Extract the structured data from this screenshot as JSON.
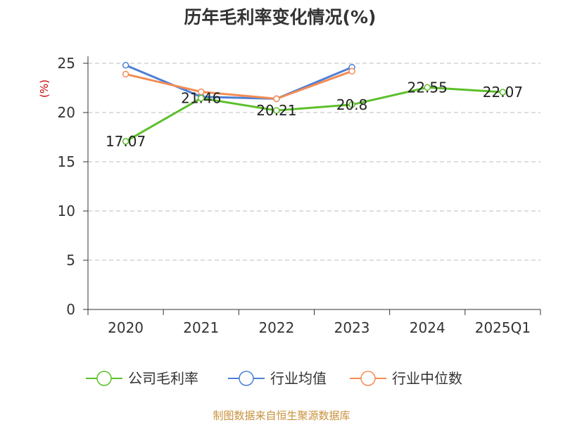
{
  "chart_data": {
    "type": "line",
    "title": "历年毛利率变化情况(%)",
    "ylabel": "(%)",
    "categories": [
      "2020",
      "2021",
      "2022",
      "2023",
      "2024",
      "2025Q1"
    ],
    "ylim": [
      0,
      25
    ],
    "yticks": [
      0,
      5,
      10,
      15,
      20,
      25
    ],
    "grid": true,
    "legend_position": "bottom",
    "series": [
      {
        "name": "公司毛利率",
        "color": "#5cbf2a",
        "values": [
          17.07,
          21.46,
          20.21,
          20.8,
          22.55,
          22.07
        ],
        "show_labels": true
      },
      {
        "name": "行业均值",
        "color": "#4d7fd6",
        "values": [
          24.8,
          21.6,
          21.4,
          24.6,
          null,
          null
        ],
        "show_labels": false
      },
      {
        "name": "行业中位数",
        "color": "#f28c54",
        "values": [
          23.9,
          22.1,
          21.4,
          24.2,
          null,
          null
        ],
        "show_labels": false
      }
    ],
    "data_labels": [
      "17.07",
      "21.46",
      "20.21",
      "20.8",
      "22.55",
      "22.07"
    ]
  },
  "source": "制图数据来自恒生聚源数据库"
}
